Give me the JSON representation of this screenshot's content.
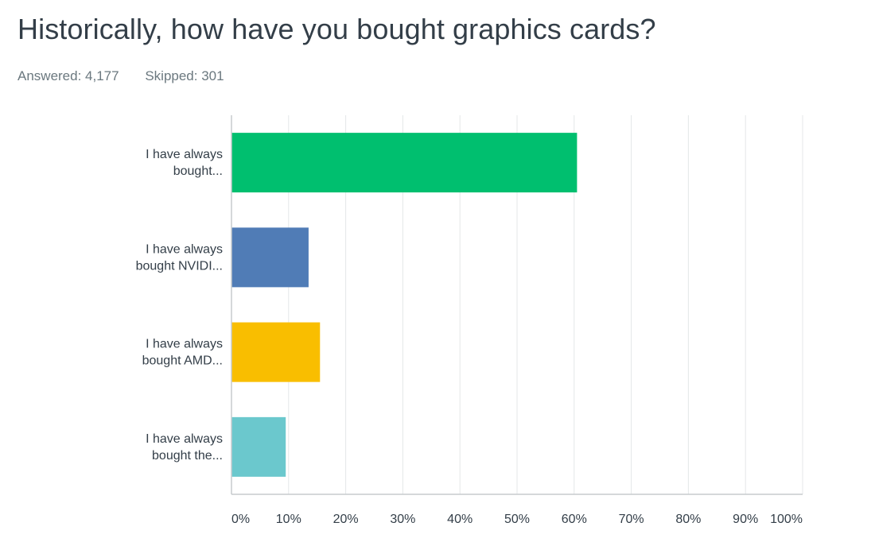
{
  "header": {
    "title": "Historically, how have you bought graphics cards?",
    "answered": "Answered: 4,177",
    "skipped": "Skipped: 301"
  },
  "chart_data": {
    "type": "bar",
    "orientation": "horizontal",
    "categories": [
      [
        "I have always",
        "bought..."
      ],
      [
        "I have always",
        "bought NVIDI..."
      ],
      [
        "I have always",
        "bought AMD..."
      ],
      [
        "I have always",
        "bought the..."
      ]
    ],
    "values": [
      60.5,
      13.5,
      15.5,
      9.5
    ],
    "colors": [
      "#00bf6f",
      "#507cb6",
      "#f9be00",
      "#6bc8cd"
    ],
    "xlim": [
      0,
      100
    ],
    "ticks": [
      "0%",
      "10%",
      "20%",
      "30%",
      "40%",
      "50%",
      "60%",
      "70%",
      "80%",
      "90%",
      "100%"
    ],
    "grid": true,
    "legend": "none"
  }
}
